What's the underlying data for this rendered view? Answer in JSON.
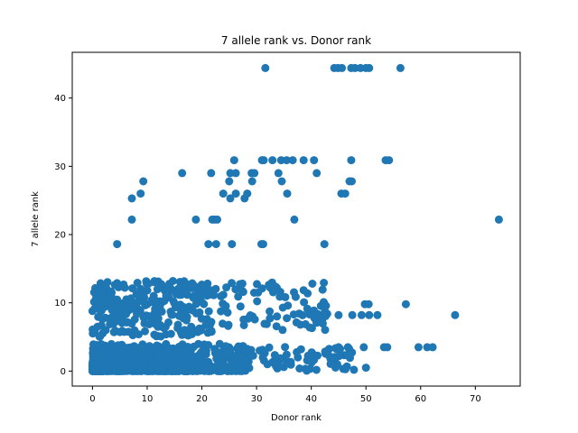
{
  "chart_data": {
    "type": "scatter",
    "title": "7 allele rank vs. Donor rank",
    "xlabel": "Donor rank",
    "ylabel": "7 allele rank",
    "xlim": [
      -3.7,
      78.2
    ],
    "ylim": [
      -2.2,
      46.7
    ],
    "xticks": [
      0,
      10,
      20,
      30,
      40,
      50,
      60,
      70
    ],
    "yticks": [
      0,
      10,
      20,
      30,
      40
    ],
    "grid": false,
    "marker_color": "#1f77b4",
    "series": [
      {
        "points": [
          [
            31.6,
            44.4
          ],
          [
            44.2,
            44.4
          ],
          [
            44.9,
            44.4
          ],
          [
            45.6,
            44.4
          ],
          [
            47.3,
            44.4
          ],
          [
            48.0,
            44.4
          ],
          [
            49.0,
            44.4
          ],
          [
            50.0,
            44.4
          ],
          [
            50.6,
            44.4
          ],
          [
            56.3,
            44.4
          ],
          [
            25.9,
            30.9
          ],
          [
            31.0,
            30.9
          ],
          [
            31.3,
            30.9
          ],
          [
            32.9,
            30.9
          ],
          [
            34.5,
            30.9
          ],
          [
            35.5,
            30.9
          ],
          [
            36.6,
            30.9
          ],
          [
            38.6,
            30.9
          ],
          [
            40.5,
            30.9
          ],
          [
            47.3,
            30.9
          ],
          [
            53.6,
            30.9
          ],
          [
            54.2,
            30.9
          ],
          [
            16.4,
            29.0
          ],
          [
            21.7,
            29.0
          ],
          [
            25.2,
            29.0
          ],
          [
            26.2,
            29.0
          ],
          [
            29.1,
            29.0
          ],
          [
            29.6,
            29.0
          ],
          [
            34.0,
            29.0
          ],
          [
            41.0,
            29.0
          ],
          [
            9.3,
            27.8
          ],
          [
            25.0,
            27.8
          ],
          [
            29.2,
            27.8
          ],
          [
            34.6,
            27.8
          ],
          [
            47.0,
            27.8
          ],
          [
            47.4,
            27.8
          ],
          [
            8.8,
            26.0
          ],
          [
            7.2,
            25.3
          ],
          [
            23.9,
            26.0
          ],
          [
            25.2,
            25.3
          ],
          [
            26.2,
            26.0
          ],
          [
            27.8,
            25.3
          ],
          [
            28.3,
            26.0
          ],
          [
            35.6,
            26.0
          ],
          [
            45.5,
            26.0
          ],
          [
            46.2,
            26.0
          ],
          [
            7.2,
            22.2
          ],
          [
            18.9,
            22.2
          ],
          [
            21.9,
            22.2
          ],
          [
            22.3,
            22.2
          ],
          [
            22.8,
            22.2
          ],
          [
            36.9,
            22.2
          ],
          [
            74.3,
            22.2
          ],
          [
            4.5,
            18.6
          ],
          [
            21.2,
            18.6
          ],
          [
            22.6,
            18.6
          ],
          [
            25.5,
            18.6
          ],
          [
            30.9,
            18.6
          ],
          [
            31.2,
            18.6
          ],
          [
            42.4,
            18.6
          ]
        ]
      }
    ]
  }
}
